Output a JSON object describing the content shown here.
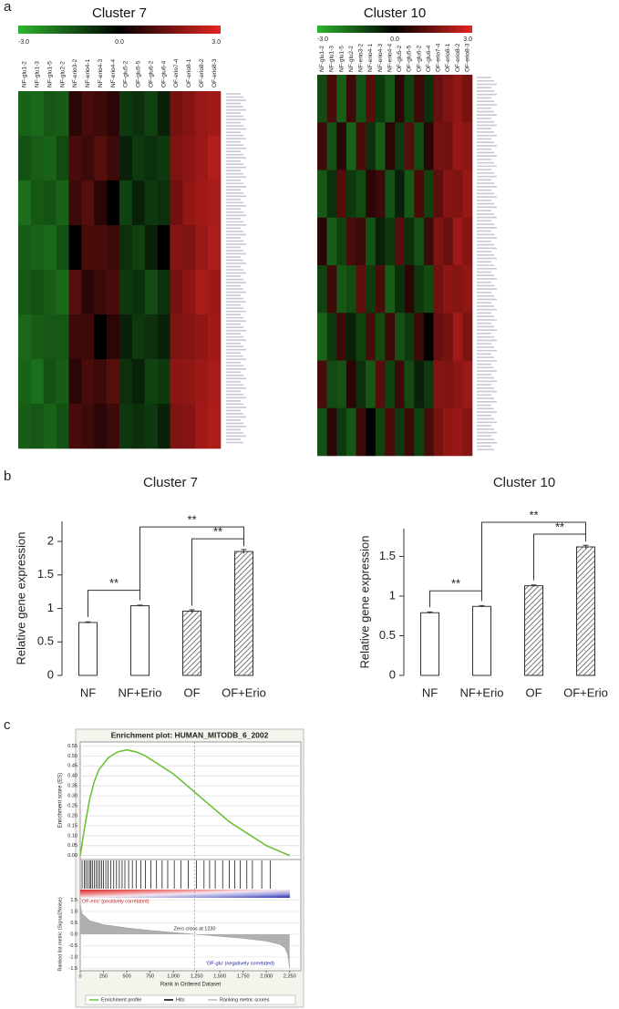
{
  "panel_labels": [
    "a",
    "b",
    "c"
  ],
  "chart_data": [
    {
      "type": "heatmap",
      "title": "Cluster 7",
      "columns": [
        "NF-glu1-2",
        "NF-glu1-3",
        "NF-glu1-5",
        "NF-glu2-2",
        "NF-erio3-2",
        "NF-erio4-1",
        "NF-erio4-3",
        "NF-erio4-4",
        "OF-glu5-2",
        "OF-glu5-5",
        "OF-glu6-2",
        "OF-glu6-4",
        "OF-erio7-4",
        "OF-erio8-1",
        "OF-erio8-2",
        "OF-erio8-3"
      ],
      "clim": [
        -3,
        3
      ],
      "colorbar_ticks": [
        {
          "value": -3,
          "label": "-3.0"
        },
        {
          "value": 0,
          "label": "0.0"
        },
        {
          "value": 3,
          "label": "3.0"
        }
      ],
      "colors": [
        "#2db52d",
        "#000000",
        "#e52521"
      ],
      "matrix": [
        [
          -0.9,
          -1.0,
          -0.7,
          -0.8,
          0.1,
          0.3,
          0.2,
          0.1,
          -0.3,
          -0.2,
          -0.4,
          -0.1,
          0.8,
          1.0,
          1.3,
          1.5
        ],
        [
          -0.6,
          -0.8,
          -0.9,
          -0.5,
          0.3,
          0.2,
          0.4,
          0.2,
          -0.1,
          -0.3,
          -0.2,
          -0.3,
          0.9,
          1.1,
          1.4,
          1.8
        ],
        [
          -1.1,
          -0.7,
          -0.6,
          -0.9,
          0.2,
          0.4,
          0.1,
          0.0,
          -0.4,
          -0.1,
          -0.3,
          -0.2,
          0.7,
          1.2,
          1.5,
          1.6
        ],
        [
          -0.8,
          -0.9,
          -1.0,
          -0.6,
          0.0,
          0.3,
          0.3,
          0.2,
          -0.2,
          -0.4,
          -0.1,
          0.0,
          1.0,
          0.9,
          1.3,
          1.7
        ],
        [
          -0.7,
          -0.6,
          -0.8,
          -1.0,
          0.4,
          0.1,
          0.2,
          0.3,
          -0.3,
          -0.2,
          -0.5,
          -0.2,
          0.8,
          1.1,
          1.6,
          1.4
        ],
        [
          -1.0,
          -0.8,
          -0.7,
          -0.7,
          0.2,
          0.2,
          0.0,
          0.1,
          -0.1,
          -0.3,
          -0.2,
          -0.1,
          0.9,
          1.0,
          1.2,
          1.5
        ],
        [
          -0.9,
          -1.1,
          -0.6,
          -0.8,
          0.1,
          0.3,
          0.2,
          0.4,
          -0.2,
          -0.1,
          -0.4,
          -0.3,
          1.1,
          1.2,
          1.4,
          1.6
        ],
        [
          -0.8,
          -0.7,
          -0.9,
          -0.6,
          0.3,
          0.2,
          0.1,
          0.2,
          -0.3,
          -0.2,
          -0.3,
          -0.1,
          0.9,
          1.0,
          1.5,
          1.7
        ]
      ]
    },
    {
      "type": "heatmap",
      "title": "Cluster 10",
      "columns": [
        "NF-glu1-2",
        "NF-glu1-3",
        "NF-glu1-5",
        "NF-glu2-2",
        "NF-erio3-2",
        "NF-erio4-1",
        "NF-erio4-3",
        "NF-erio4-4",
        "OF-glu5-2",
        "OF-glu5-5",
        "OF-glu6-2",
        "OF-glu6-4",
        "OF-erio7-4",
        "OF-erio8-1",
        "OF-erio8-2",
        "OF-erio8-3"
      ],
      "clim": [
        -3,
        3
      ],
      "colorbar_ticks": [
        {
          "value": -3,
          "label": "-3.0"
        },
        {
          "value": 0,
          "label": "0.0"
        },
        {
          "value": 3,
          "label": "3.0"
        }
      ],
      "colors": [
        "#2db52d",
        "#000000",
        "#e52521"
      ],
      "matrix": [
        [
          -0.5,
          0.3,
          -0.8,
          0.2,
          -0.6,
          0.4,
          -0.3,
          -0.7,
          0.1,
          -0.4,
          0.2,
          -0.2,
          0.6,
          0.9,
          1.2,
          0.8
        ],
        [
          0.2,
          -0.6,
          0.1,
          -0.9,
          0.3,
          -0.2,
          -0.8,
          0.1,
          -0.3,
          0.4,
          -0.5,
          0.1,
          0.8,
          0.7,
          1.3,
          1.1
        ],
        [
          -0.7,
          -0.2,
          0.4,
          -0.3,
          -0.5,
          0.1,
          0.2,
          -0.6,
          -0.1,
          -0.7,
          0.3,
          -0.4,
          0.5,
          1.0,
          0.9,
          1.3
        ],
        [
          0.1,
          -0.8,
          -0.4,
          0.3,
          0.2,
          -0.6,
          -0.1,
          -0.3,
          0.4,
          -0.2,
          -0.6,
          0.2,
          0.9,
          0.6,
          1.4,
          1.0
        ],
        [
          -0.4,
          0.2,
          -0.7,
          -0.5,
          0.5,
          -0.3,
          0.3,
          -0.8,
          -0.2,
          0.1,
          -0.3,
          -0.5,
          0.7,
          1.1,
          1.0,
          1.2
        ],
        [
          -0.9,
          -0.3,
          0.2,
          -0.1,
          -0.4,
          0.3,
          -0.5,
          0.2,
          -0.6,
          -0.3,
          0.2,
          0.0,
          0.6,
          0.8,
          1.5,
          0.9
        ],
        [
          0.3,
          -0.5,
          -0.6,
          0.1,
          -0.2,
          -0.7,
          0.4,
          -0.4,
          0.2,
          -0.5,
          -0.1,
          -0.3,
          1.0,
          0.9,
          1.1,
          1.4
        ],
        [
          -0.6,
          0.1,
          -0.3,
          -0.7,
          0.2,
          0.0,
          -0.4,
          0.3,
          -0.3,
          0.2,
          -0.4,
          0.3,
          0.8,
          1.2,
          1.3,
          1.0
        ]
      ]
    },
    {
      "type": "bar",
      "title": "Cluster 7",
      "ylabel": "Relative gene expression",
      "categories": [
        "NF",
        "NF+Erio",
        "OF",
        "OF+Erio"
      ],
      "values": [
        0.79,
        1.04,
        0.96,
        1.85
      ],
      "errors": [
        0.01,
        0.01,
        0.02,
        0.03
      ],
      "patterns": [
        "none",
        "none",
        "hatch",
        "hatch"
      ],
      "ylim": [
        0,
        2.3
      ],
      "yticks": [
        0,
        0.5,
        1,
        1.5,
        2
      ],
      "annotations": [
        "**",
        "**",
        "**"
      ]
    },
    {
      "type": "bar",
      "title": "Cluster 10",
      "ylabel": "Relative gene expression",
      "categories": [
        "NF",
        "NF+Erio",
        "OF",
        "OF+Erio"
      ],
      "values": [
        0.79,
        0.87,
        1.13,
        1.62
      ],
      "errors": [
        0.01,
        0.01,
        0.01,
        0.02
      ],
      "patterns": [
        "none",
        "none",
        "hatch",
        "hatch"
      ],
      "ylim": [
        0,
        1.85
      ],
      "yticks": [
        0,
        0.5,
        1,
        1.5
      ],
      "annotations": [
        "**",
        "**",
        "**"
      ]
    },
    {
      "type": "enrichment",
      "title": "Enrichment plot: HUMAN_MITODB_6_2002",
      "xlim": [
        0,
        2370
      ],
      "xticks": [
        0,
        250,
        500,
        750,
        {
          "value": 1000,
          "label": "1,000"
        },
        {
          "value": 1250,
          "label": "1,250"
        },
        {
          "value": 1500,
          "label": "1,500"
        },
        {
          "value": 1750,
          "label": "1,750"
        },
        {
          "value": 2000,
          "label": "2,000"
        },
        {
          "value": 2250,
          "label": "2,250"
        }
      ],
      "xlabel": "Rank in Ordered Dataset",
      "es": {
        "ylabel": "Enrichment score (ES)",
        "color": "#6cc23a",
        "x": [
          0,
          50,
          100,
          150,
          200,
          300,
          400,
          500,
          600,
          700,
          800,
          900,
          1000,
          1100,
          1200,
          1300,
          1400,
          1500,
          1600,
          1700,
          1800,
          1900,
          2000,
          2100,
          2200,
          2250
        ],
        "y": [
          0,
          0.15,
          0.28,
          0.37,
          0.43,
          0.49,
          0.52,
          0.53,
          0.52,
          0.5,
          0.47,
          0.44,
          0.41,
          0.37,
          0.33,
          0.29,
          0.25,
          0.21,
          0.17,
          0.14,
          0.11,
          0.08,
          0.05,
          0.03,
          0.01,
          0
        ],
        "ylim": [
          -0.015,
          0.57
        ],
        "yticks": [
          {
            "value": 0,
            "label": "0.00"
          },
          {
            "value": 0.05,
            "label": "0.05"
          },
          {
            "value": 0.1,
            "label": "0.10"
          },
          {
            "value": 0.15,
            "label": "0.15"
          },
          {
            "value": 0.2,
            "label": "0.20"
          },
          {
            "value": 0.25,
            "label": "0.25"
          },
          {
            "value": 0.3,
            "label": "0.30"
          },
          {
            "value": 0.35,
            "label": "0.35"
          },
          {
            "value": 0.4,
            "label": "0.40"
          },
          {
            "value": 0.45,
            "label": "0.45"
          },
          {
            "value": 0.5,
            "label": "0.50"
          },
          {
            "value": 0.55,
            "label": "0.55"
          }
        ]
      },
      "hits": [
        20,
        45,
        60,
        80,
        100,
        115,
        130,
        150,
        170,
        190,
        210,
        230,
        250,
        275,
        300,
        330,
        360,
        390,
        420,
        450,
        480,
        520,
        560,
        600,
        650,
        700,
        760,
        820,
        880,
        940,
        1010,
        1080,
        1160,
        1250,
        1330,
        1390,
        1450,
        1530,
        1600,
        1660,
        1720,
        1790,
        1850,
        1950,
        2040
      ],
      "metric": {
        "ylabel": "Ranked list metric (Signal2Noise)",
        "color": "#b0b0b0",
        "x": [
          0,
          20,
          100,
          250,
          500,
          750,
          1000,
          1230,
          1500,
          1750,
          2000,
          2150,
          2200,
          2230,
          2250
        ],
        "y": [
          1.3,
          0.9,
          0.6,
          0.42,
          0.28,
          0.17,
          0.08,
          0,
          -0.09,
          -0.18,
          -0.3,
          -0.45,
          -0.6,
          -0.9,
          -1.5
        ],
        "ylim": [
          -1.6,
          1.6
        ],
        "yticks": [
          1.5,
          {
            "value": 1,
            "label": "1.0"
          },
          0.5,
          {
            "value": 0,
            "label": "0.0"
          },
          -0.5,
          {
            "value": -1,
            "label": "-1.0"
          },
          -1.5
        ],
        "zero_cross": 1230,
        "zero_cross_label": "Zero cross at 1230",
        "positive_label": "'OF-erio' (positively correlated)",
        "negative_label": "'OF-glu' (negatively correlated)"
      },
      "legend": [
        "Enrichment profile",
        "Hits",
        "Ranking metric scores"
      ]
    }
  ]
}
